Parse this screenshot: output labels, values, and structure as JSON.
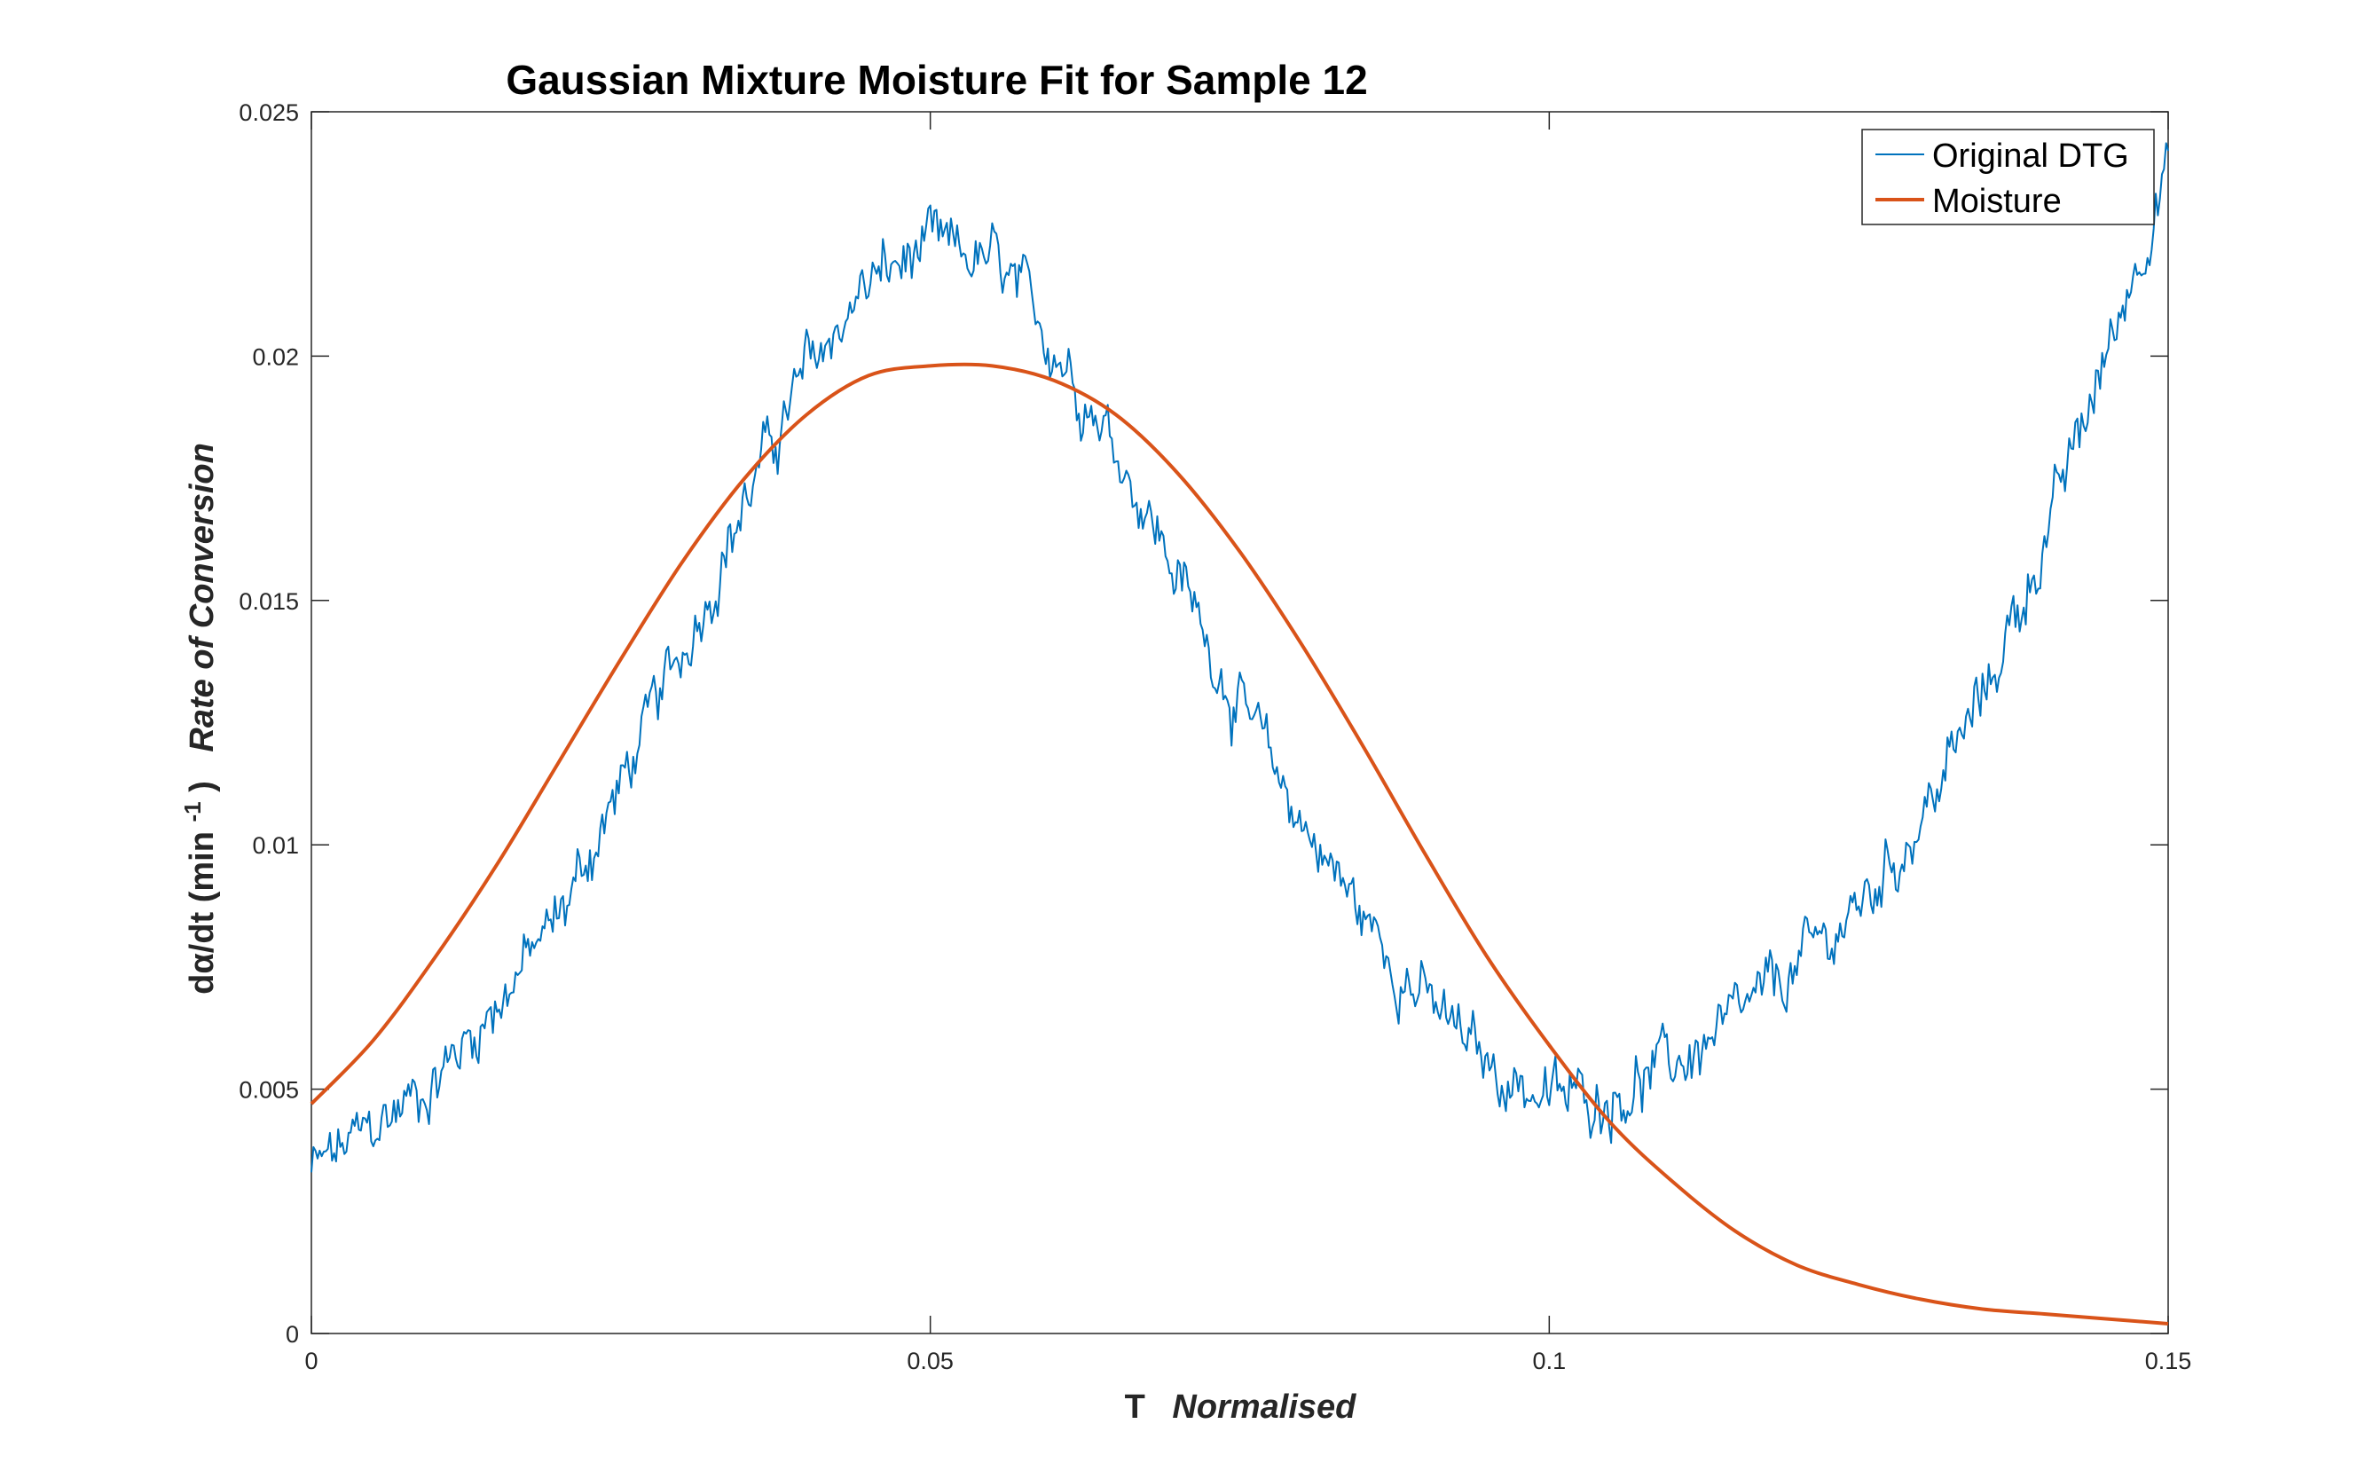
{
  "chart_data": {
    "type": "line",
    "title": "Gaussian Mixture Moisture Fit for Sample 12",
    "xlabel": {
      "main": "T",
      "italic": "Normalised"
    },
    "ylabel": {
      "main": "dα/dt (min",
      "sup": "-1",
      "close": ")",
      "italic": "Rate of Conversion"
    },
    "xlim": [
      0,
      0.15
    ],
    "ylim": [
      0,
      0.025
    ],
    "xticks": [
      0,
      0.05,
      0.1,
      0.15
    ],
    "xtick_labels": [
      "0",
      "0.05",
      "0.1",
      "0.15"
    ],
    "yticks": [
      0,
      0.005,
      0.01,
      0.015,
      0.02,
      0.025
    ],
    "ytick_labels": [
      "0",
      "0.005",
      "0.01",
      "0.015",
      "0.02",
      "0.025"
    ],
    "grid": false,
    "legend_position": "top-right",
    "series": [
      {
        "name": "Original DTG",
        "color": "#0072BD",
        "style": "noisy",
        "x": [
          0,
          0.005,
          0.01,
          0.015,
          0.02,
          0.025,
          0.03,
          0.035,
          0.04,
          0.045,
          0.05,
          0.055,
          0.06,
          0.065,
          0.07,
          0.075,
          0.08,
          0.085,
          0.09,
          0.095,
          0.1,
          0.105,
          0.11,
          0.115,
          0.12,
          0.125,
          0.13,
          0.135,
          0.14,
          0.145,
          0.15
        ],
        "y": [
          0.0033,
          0.0042,
          0.0052,
          0.0068,
          0.0085,
          0.0112,
          0.014,
          0.017,
          0.0197,
          0.0215,
          0.0222,
          0.0219,
          0.0203,
          0.0182,
          0.0155,
          0.0128,
          0.0105,
          0.0085,
          0.0068,
          0.0055,
          0.0048,
          0.0049,
          0.0055,
          0.0063,
          0.0075,
          0.0087,
          0.0105,
          0.013,
          0.0162,
          0.02,
          0.024
        ]
      },
      {
        "name": "Moisture",
        "color": "#D95319",
        "style": "smooth",
        "x": [
          0,
          0.005,
          0.01,
          0.015,
          0.02,
          0.025,
          0.03,
          0.035,
          0.04,
          0.045,
          0.05,
          0.055,
          0.06,
          0.065,
          0.07,
          0.075,
          0.08,
          0.085,
          0.09,
          0.095,
          0.1,
          0.105,
          0.11,
          0.115,
          0.12,
          0.125,
          0.13,
          0.135,
          0.14,
          0.145,
          0.15
        ],
        "y": [
          0.0047,
          0.006,
          0.0077,
          0.0096,
          0.0117,
          0.0138,
          0.0158,
          0.0175,
          0.0188,
          0.0196,
          0.0198,
          0.0198,
          0.0195,
          0.0188,
          0.0176,
          0.016,
          0.0141,
          0.012,
          0.0098,
          0.0077,
          0.0059,
          0.0043,
          0.0031,
          0.0021,
          0.0014,
          0.001,
          0.0007,
          0.0005,
          0.0004,
          0.0003,
          0.0002
        ]
      }
    ]
  }
}
